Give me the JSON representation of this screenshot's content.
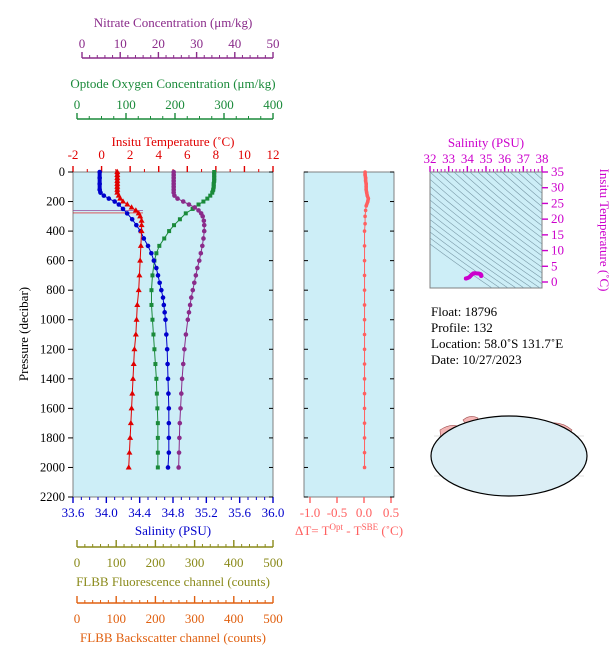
{
  "colors": {
    "nitrate": "#8a2b8a",
    "oxygen": "#1a8a3a",
    "temperature": "#e00000",
    "salinity": "#0000cc",
    "fluorescence": "#8a8a1a",
    "backscatter": "#e06010",
    "deltaT": "#ff6060",
    "tsAxis": "#cc00cc",
    "plotBg": "#cdeef7"
  },
  "axes": {
    "nitrate": {
      "title": "Nitrate Concentration (μm/kg)",
      "ticks": [
        "0",
        "10",
        "20",
        "30",
        "40",
        "50"
      ]
    },
    "oxygen": {
      "title": "Optode Oxygen Concentration (μm/kg)",
      "ticks": [
        "0",
        "100",
        "200",
        "300",
        "400"
      ]
    },
    "temperature": {
      "title": "Insitu Temperature (˚C)",
      "ticks": [
        "-2",
        "0",
        "2",
        "4",
        "6",
        "8",
        "10",
        "12"
      ]
    },
    "salinity": {
      "title": "Salinity (PSU)",
      "ticks": [
        "33.6",
        "34.0",
        "34.4",
        "34.8",
        "35.2",
        "35.6",
        "36.0"
      ]
    },
    "pressure": {
      "title": "Pressure (decibar)",
      "ticks": [
        "0",
        "200",
        "400",
        "600",
        "800",
        "1000",
        "1200",
        "1400",
        "1600",
        "1800",
        "2000",
        "2200"
      ]
    },
    "deltaT": {
      "title_main": "ΔT= T",
      "sup1": "Opt",
      "mid": " - T",
      "sup2": "SBE",
      "unit": " (˚C)",
      "ticks": [
        "-1.0",
        "-0.5",
        "0.0",
        "0.5"
      ]
    },
    "fluorescence": {
      "title": "FLBB Fluorescence channel (counts)",
      "ticks": [
        "0",
        "100",
        "200",
        "300",
        "400",
        "500"
      ]
    },
    "backscatter": {
      "title": "FLBB Backscatter channel (counts)",
      "ticks": [
        "0",
        "100",
        "200",
        "300",
        "400",
        "500"
      ]
    },
    "tsSalinity": {
      "title": "Salinity (PSU)",
      "ticks": [
        "32",
        "33",
        "34",
        "35",
        "36",
        "37",
        "38"
      ]
    },
    "tsTemperature": {
      "title": "Insitu Temperature (˚C)",
      "ticks": [
        "0",
        "5",
        "10",
        "15",
        "20",
        "25",
        "30",
        "35"
      ]
    }
  },
  "info": {
    "float": "Float:  18796",
    "profile": "Profile:  132",
    "location": "Location:  58.0˚S  131.7˚E",
    "date": "Date:  10/27/2023"
  },
  "chart_data": [
    {
      "type": "line",
      "name": "profile",
      "ylabel": "Pressure (decibar)",
      "ylim": [
        0,
        2200
      ],
      "series": [
        {
          "name": "Insitu Temperature",
          "xlim": [
            -2,
            12
          ],
          "points": [
            [
              1.1,
              0
            ],
            [
              1.1,
              20
            ],
            [
              1.1,
              40
            ],
            [
              1.1,
              60
            ],
            [
              1.1,
              80
            ],
            [
              1.1,
              100
            ],
            [
              1.1,
              120
            ],
            [
              1.1,
              140
            ],
            [
              1.2,
              160
            ],
            [
              1.3,
              180
            ],
            [
              1.5,
              200
            ],
            [
              1.8,
              220
            ],
            [
              2.1,
              240
            ],
            [
              2.4,
              260
            ],
            [
              2.6,
              280
            ],
            [
              2.7,
              300
            ],
            [
              2.8,
              330
            ],
            [
              2.8,
              360
            ],
            [
              2.8,
              400
            ],
            [
              2.75,
              500
            ],
            [
              2.7,
              600
            ],
            [
              2.65,
              700
            ],
            [
              2.6,
              800
            ],
            [
              2.5,
              900
            ],
            [
              2.45,
              1000
            ],
            [
              2.4,
              1100
            ],
            [
              2.3,
              1200
            ],
            [
              2.25,
              1300
            ],
            [
              2.2,
              1400
            ],
            [
              2.15,
              1500
            ],
            [
              2.1,
              1600
            ],
            [
              2.05,
              1700
            ],
            [
              2.0,
              1800
            ],
            [
              1.95,
              1900
            ],
            [
              1.9,
              2000
            ]
          ]
        },
        {
          "name": "Salinity",
          "xlim": [
            33.6,
            36.0
          ],
          "points": [
            [
              33.92,
              0
            ],
            [
              33.92,
              40
            ],
            [
              33.92,
              80
            ],
            [
              33.92,
              120
            ],
            [
              33.93,
              140
            ],
            [
              33.97,
              160
            ],
            [
              34.03,
              180
            ],
            [
              34.1,
              200
            ],
            [
              34.15,
              220
            ],
            [
              34.2,
              250
            ],
            [
              34.25,
              280
            ],
            [
              34.31,
              320
            ],
            [
              34.36,
              360
            ],
            [
              34.41,
              400
            ],
            [
              34.45,
              450
            ],
            [
              34.5,
              500
            ],
            [
              34.54,
              550
            ],
            [
              34.57,
              600
            ],
            [
              34.6,
              650
            ],
            [
              34.62,
              700
            ],
            [
              34.64,
              750
            ],
            [
              34.66,
              800
            ],
            [
              34.68,
              850
            ],
            [
              34.69,
              900
            ],
            [
              34.7,
              950
            ],
            [
              34.71,
              1000
            ],
            [
              34.72,
              1100
            ],
            [
              34.73,
              1200
            ],
            [
              34.735,
              1300
            ],
            [
              34.74,
              1400
            ],
            [
              34.745,
              1500
            ],
            [
              34.75,
              1600
            ],
            [
              34.75,
              1700
            ],
            [
              34.75,
              1800
            ],
            [
              34.75,
              1900
            ],
            [
              34.74,
              2000
            ]
          ]
        },
        {
          "name": "Optode Oxygen Concentration",
          "xlim": [
            0,
            400
          ],
          "points": [
            [
              280,
              0
            ],
            [
              280,
              20
            ],
            [
              280,
              40
            ],
            [
              280,
              60
            ],
            [
              279,
              80
            ],
            [
              279,
              100
            ],
            [
              278,
              120
            ],
            [
              276,
              140
            ],
            [
              272,
              160
            ],
            [
              266,
              180
            ],
            [
              258,
              200
            ],
            [
              248,
              220
            ],
            [
              236,
              250
            ],
            [
              222,
              280
            ],
            [
              210,
              320
            ],
            [
              198,
              360
            ],
            [
              188,
              400
            ],
            [
              178,
              450
            ],
            [
              168,
              500
            ],
            [
              162,
              550
            ],
            [
              158,
              600
            ],
            [
              154,
              700
            ],
            [
              152,
              800
            ],
            [
              152,
              900
            ],
            [
              154,
              1000
            ],
            [
              156,
              1100
            ],
            [
              158,
              1200
            ],
            [
              160,
              1300
            ],
            [
              162,
              1400
            ],
            [
              163,
              1500
            ],
            [
              164,
              1600
            ],
            [
              165,
              1700
            ],
            [
              165,
              1800
            ],
            [
              165,
              1900
            ],
            [
              165,
              2000
            ]
          ]
        },
        {
          "name": "Nitrate Concentration",
          "xlim": [
            0,
            50
          ],
          "points": [
            [
              24,
              0
            ],
            [
              24,
              20
            ],
            [
              24,
              40
            ],
            [
              24,
              60
            ],
            [
              24,
              80
            ],
            [
              24,
              100
            ],
            [
              24,
              120
            ],
            [
              24,
              140
            ],
            [
              24.2,
              160
            ],
            [
              25,
              180
            ],
            [
              26.5,
              200
            ],
            [
              28,
              220
            ],
            [
              29.5,
              240
            ],
            [
              30.5,
              260
            ],
            [
              31.2,
              280
            ],
            [
              31.6,
              300
            ],
            [
              31.9,
              330
            ],
            [
              32,
              360
            ],
            [
              32,
              400
            ],
            [
              31.8,
              450
            ],
            [
              31.5,
              500
            ],
            [
              31.1,
              550
            ],
            [
              30.7,
              600
            ],
            [
              30.2,
              650
            ],
            [
              29.8,
              700
            ],
            [
              29.4,
              750
            ],
            [
              29,
              800
            ],
            [
              28.6,
              850
            ],
            [
              28.3,
              900
            ],
            [
              28,
              950
            ],
            [
              27.7,
              1000
            ],
            [
              27.2,
              1100
            ],
            [
              26.8,
              1200
            ],
            [
              26.5,
              1300
            ],
            [
              26.2,
              1400
            ],
            [
              26,
              1500
            ],
            [
              25.8,
              1600
            ],
            [
              25.6,
              1700
            ],
            [
              25.5,
              1800
            ],
            [
              25.4,
              1900
            ],
            [
              25.3,
              2000
            ]
          ]
        },
        {
          "name": "ΔT",
          "xlim": [
            -1.25,
            0.6
          ],
          "points": [
            [
              0.02,
              0
            ],
            [
              0.02,
              20
            ],
            [
              0.03,
              40
            ],
            [
              0.03,
              60
            ],
            [
              0.04,
              80
            ],
            [
              0.04,
              100
            ],
            [
              0.04,
              120
            ],
            [
              0.05,
              140
            ],
            [
              0.06,
              160
            ],
            [
              0.08,
              180
            ],
            [
              0.07,
              200
            ],
            [
              0.04,
              230
            ],
            [
              0.03,
              260
            ],
            [
              0.02,
              300
            ],
            [
              0.02,
              350
            ],
            [
              0.01,
              400
            ],
            [
              0.01,
              500
            ],
            [
              0.01,
              600
            ],
            [
              0.01,
              700
            ],
            [
              0.01,
              800
            ],
            [
              0.01,
              900
            ],
            [
              0.01,
              1000
            ],
            [
              0.01,
              1100
            ],
            [
              0.01,
              1200
            ],
            [
              0.01,
              1300
            ],
            [
              0.01,
              1400
            ],
            [
              0.01,
              1500
            ],
            [
              0.01,
              1600
            ],
            [
              0.01,
              1700
            ],
            [
              0.01,
              1800
            ],
            [
              0.01,
              1900
            ],
            [
              0.01,
              2000
            ]
          ]
        }
      ]
    },
    {
      "type": "scatter",
      "name": "T-S diagram",
      "xlabel": "Salinity (PSU)",
      "ylabel": "Insitu Temperature (˚C)",
      "xlim": [
        32,
        38
      ],
      "ylim": [
        -2,
        35
      ],
      "points": [
        [
          33.92,
          1.1
        ],
        [
          33.93,
          1.1
        ],
        [
          33.97,
          1.2
        ],
        [
          34.03,
          1.3
        ],
        [
          34.1,
          1.5
        ],
        [
          34.15,
          1.8
        ],
        [
          34.2,
          2.1
        ],
        [
          34.25,
          2.4
        ],
        [
          34.31,
          2.7
        ],
        [
          34.36,
          2.8
        ],
        [
          34.41,
          2.8
        ],
        [
          34.5,
          2.75
        ],
        [
          34.57,
          2.7
        ],
        [
          34.62,
          2.65
        ],
        [
          34.66,
          2.6
        ],
        [
          34.69,
          2.5
        ],
        [
          34.71,
          2.45
        ],
        [
          34.72,
          2.4
        ],
        [
          34.73,
          2.3
        ],
        [
          34.74,
          2.2
        ],
        [
          34.75,
          2.1
        ],
        [
          34.75,
          2.0
        ],
        [
          34.74,
          1.9
        ]
      ]
    }
  ]
}
